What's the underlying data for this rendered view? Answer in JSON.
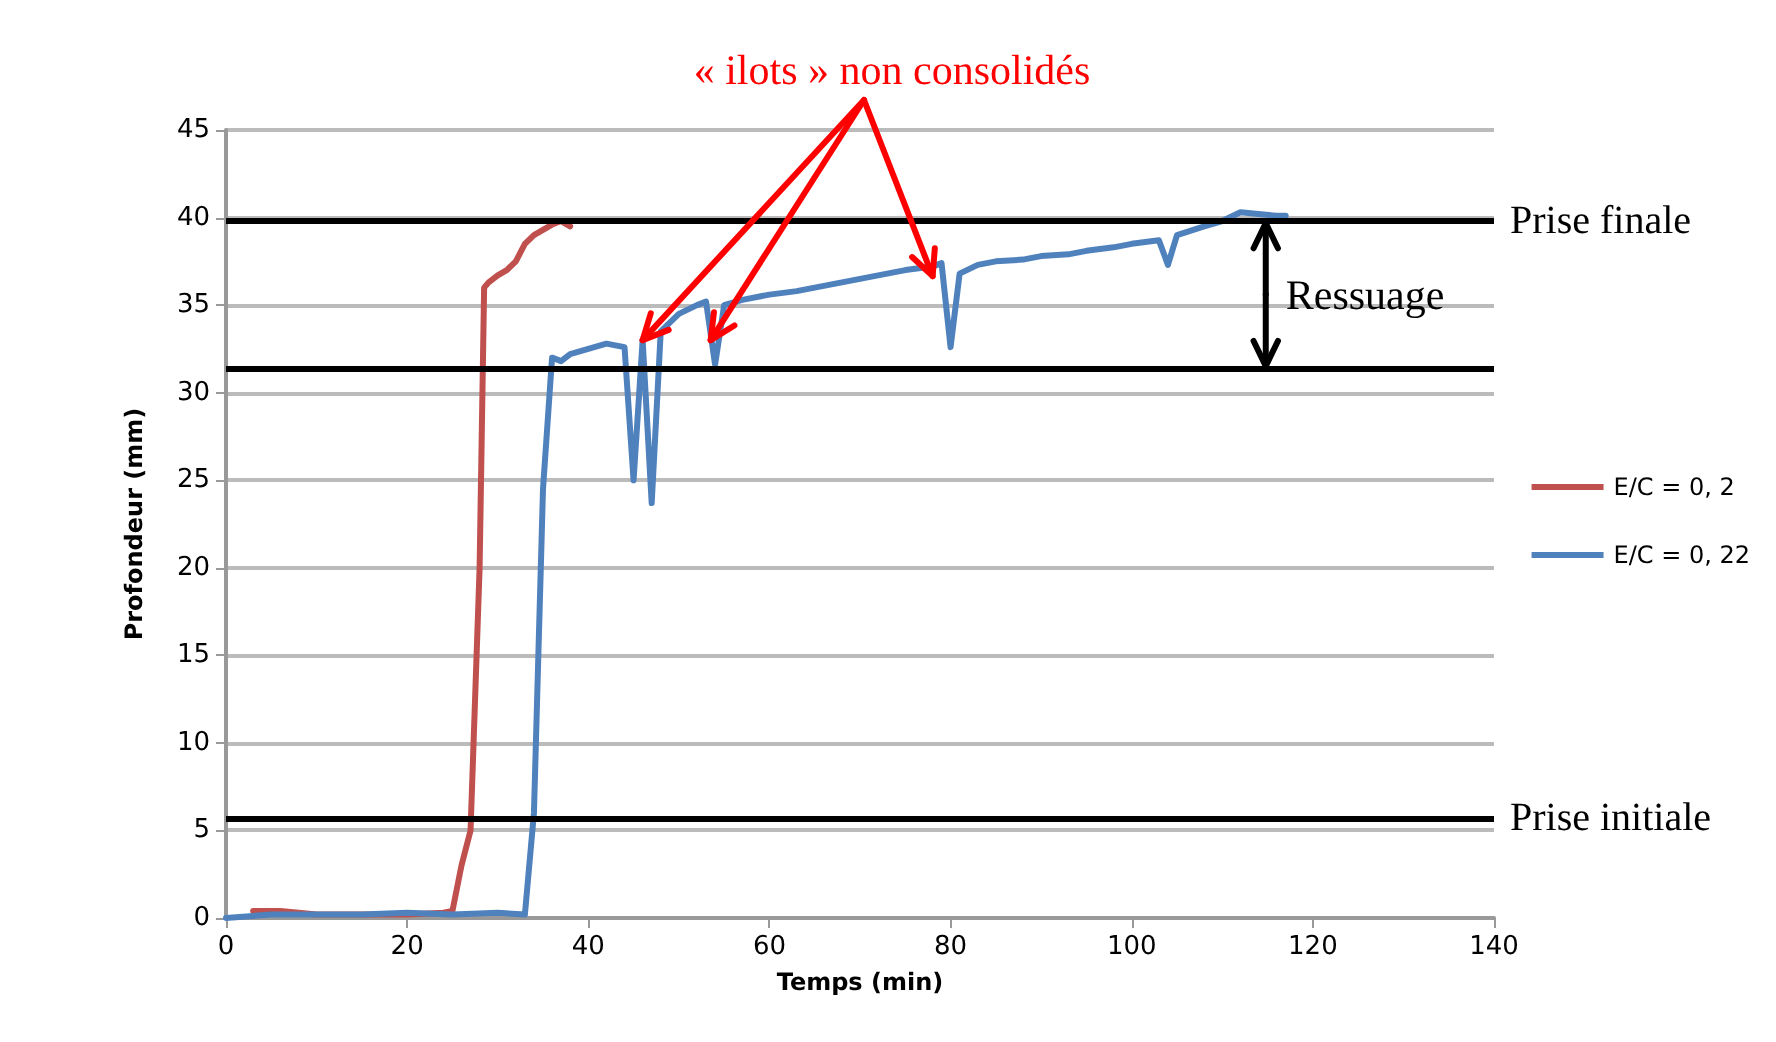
{
  "chart_data": {
    "type": "line",
    "xlabel": "Temps (min)",
    "ylabel": "Profondeur (mm)",
    "xlim": [
      0,
      140
    ],
    "xticks": [
      0,
      20,
      40,
      60,
      80,
      100,
      120,
      140
    ],
    "ylim": [
      0,
      45
    ],
    "yticks": [
      0,
      5,
      10,
      15,
      20,
      25,
      30,
      35,
      40,
      45
    ],
    "grid": "y",
    "legend": "right",
    "marker": "none",
    "line_style": "solid",
    "series": [
      {
        "name": "E/C = 0, 2",
        "color": "#c0504d",
        "x": [
          3,
          6,
          10,
          15,
          20,
          24,
          25,
          26,
          27,
          28,
          28.5,
          29,
          30,
          31,
          32,
          33,
          34,
          35,
          36,
          37,
          38
        ],
        "values": [
          0.4,
          0.4,
          0.2,
          0.2,
          0.2,
          0.3,
          0.4,
          3,
          5,
          20,
          36,
          36.3,
          36.7,
          37,
          37.5,
          38.5,
          39,
          39.3,
          39.6,
          39.8,
          39.5
        ]
      },
      {
        "name": "E/C = 0, 22",
        "color": "#4f81bd",
        "x": [
          0,
          5,
          10,
          15,
          20,
          25,
          30,
          33,
          34,
          35,
          36,
          37,
          38,
          40,
          42,
          44,
          45,
          46,
          47,
          48,
          50,
          52,
          53,
          54,
          55,
          57,
          60,
          63,
          65,
          68,
          70,
          73,
          75,
          78,
          79,
          80,
          81,
          83,
          85,
          88,
          90,
          93,
          95,
          98,
          100,
          103,
          104,
          105,
          108,
          110,
          112,
          114,
          116,
          117
        ],
        "values": [
          0,
          0.2,
          0.2,
          0.2,
          0.3,
          0.2,
          0.3,
          0.2,
          6,
          24.5,
          32,
          31.8,
          32.2,
          32.5,
          32.8,
          32.6,
          25,
          33,
          23.7,
          33.5,
          34.5,
          35,
          35.2,
          31.6,
          35,
          35.3,
          35.6,
          35.8,
          36,
          36.3,
          36.5,
          36.8,
          37,
          37.2,
          37.4,
          32.6,
          36.8,
          37.3,
          37.5,
          37.6,
          37.8,
          37.9,
          38.1,
          38.3,
          38.5,
          38.7,
          37.3,
          39,
          39.5,
          39.8,
          40.3,
          40.2,
          40.1,
          40.1
        ]
      }
    ],
    "ref_lines": [
      {
        "axis": "y",
        "value": 5.7,
        "label": "Prise initiale",
        "color": "#000000"
      },
      {
        "axis": "y",
        "value": 31.4,
        "label": null,
        "color": "#000000"
      },
      {
        "axis": "y",
        "value": 39.8,
        "label": "Prise finale",
        "color": "#000000"
      }
    ],
    "annotations": [
      {
        "text": "« ilots » non consolidés",
        "x": 46,
        "y": 33
      },
      "Ressuage"
    ]
  }
}
